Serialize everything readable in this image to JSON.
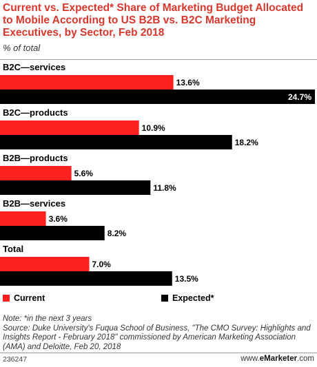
{
  "header": {
    "title": "Current vs. Expected* Share of Marketing Budget Allocated to Mobile According to US B2B vs. B2C Marketing Executives, by Sector, Feb 2018",
    "subtitle": "% of total"
  },
  "colors": {
    "current": "#ff2020",
    "expected": "#000000"
  },
  "chart_data": {
    "type": "bar",
    "orientation": "horizontal",
    "categories": [
      "B2C—services",
      "B2C—products",
      "B2B—products",
      "B2B—services",
      "Total"
    ],
    "series": [
      {
        "name": "Current",
        "values": [
          13.6,
          10.9,
          5.6,
          3.6,
          7.0
        ]
      },
      {
        "name": "Expected*",
        "values": [
          24.7,
          18.2,
          11.8,
          8.2,
          13.5
        ]
      }
    ],
    "value_labels": {
      "Current": [
        "13.6%",
        "10.9%",
        "5.6%",
        "3.6%",
        "7.0%"
      ],
      "Expected*": [
        "24.7%",
        "18.2%",
        "11.8%",
        "8.2%",
        "13.5%"
      ]
    },
    "xlim": [
      0,
      24.7
    ],
    "grid": false,
    "legend": "bottom"
  },
  "legend": {
    "current_label": "Current",
    "expected_label": "Expected*"
  },
  "footer": {
    "note": "Note: *in the next 3 years",
    "source": "Source: Duke University's Fuqua School of Business, \"The CMO Survey: Highlights and Insights Report - February 2018\" commissioned by American Marketing Association (AMA) and Deloitte, Feb 20, 2018",
    "chart_id": "236247",
    "brand_prefix": "www.",
    "brand_name": "eMarketer",
    "brand_suffix": ".com"
  }
}
